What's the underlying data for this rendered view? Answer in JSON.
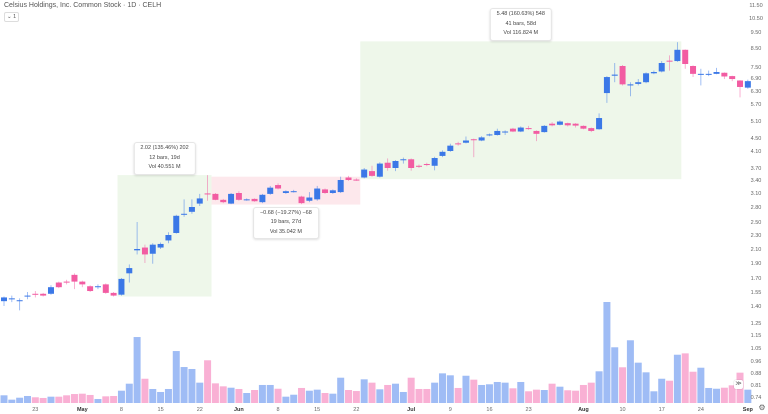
{
  "header": {
    "title": "Celsius Holdings, Inc. Common Stock · 1D · CELH",
    "legend_toggle": "⌄ 1"
  },
  "colors": {
    "up": "#3b78e7",
    "down": "#f25ca2",
    "up_volume": "#9fbcf5",
    "down_volume": "#f9b0d4",
    "gain_zone": "#eef7ea",
    "loss_zone": "#fde8ec"
  },
  "price_axis": {
    "ticks": [
      "11.50",
      "10.50",
      "9.50",
      "8.50",
      "7.50",
      "6.90",
      "6.30",
      "5.70",
      "5.10",
      "4.50",
      "4.10",
      "3.70",
      "3.40",
      "3.10",
      "2.80",
      "2.50",
      "2.30",
      "2.10",
      "1.90",
      "1.70",
      "1.55",
      "1.40",
      "1.25",
      "1.15",
      "1.05",
      "0.96",
      "0.88",
      "0.81",
      "0.74"
    ],
    "scale": "log"
  },
  "date_axis": [
    {
      "label": "23",
      "bar": 4,
      "bold": false
    },
    {
      "label": "May",
      "bar": 10,
      "bold": true
    },
    {
      "label": "8",
      "bar": 15,
      "bold": false
    },
    {
      "label": "15",
      "bar": 20,
      "bold": false
    },
    {
      "label": "22",
      "bar": 25,
      "bold": false
    },
    {
      "label": "Jun",
      "bar": 30,
      "bold": true
    },
    {
      "label": "8",
      "bar": 35,
      "bold": false
    },
    {
      "label": "15",
      "bar": 40,
      "bold": false
    },
    {
      "label": "22",
      "bar": 45,
      "bold": false
    },
    {
      "label": "Jul",
      "bar": 52,
      "bold": true
    },
    {
      "label": "9",
      "bar": 57,
      "bold": false
    },
    {
      "label": "16",
      "bar": 62,
      "bold": false
    },
    {
      "label": "23",
      "bar": 67,
      "bold": false
    },
    {
      "label": "Aug",
      "bar": 74,
      "bold": true
    },
    {
      "label": "10",
      "bar": 79,
      "bold": false
    },
    {
      "label": "17",
      "bar": 84,
      "bold": false
    },
    {
      "label": "24",
      "bar": 89,
      "bold": false
    },
    {
      "label": "Sep",
      "bar": 95,
      "bold": true
    }
  ],
  "measurements": [
    {
      "from_bar": 14.5,
      "to_bar": 26.5,
      "high": 3.52,
      "low": 1.5,
      "type": "gain",
      "label_position": "above",
      "lines": [
        "2.02 (135.46%) 202",
        "12 bars, 19d",
        "Vol 40.551 M"
      ]
    },
    {
      "from_bar": 26.5,
      "to_bar": 45.5,
      "high": 3.48,
      "low": 2.85,
      "type": "loss",
      "label_position": "below",
      "lines": [
        "−0.68 (−19.27%) −68",
        "19 bars, 27d",
        "Vol 35.042 M"
      ]
    },
    {
      "from_bar": 45.5,
      "to_bar": 86.5,
      "high": 8.9,
      "low": 3.42,
      "type": "gain",
      "label_position": "above",
      "lines": [
        "5.48 (160.63%) 548",
        "41 bars, 58d",
        "Vol 116.824 M"
      ]
    }
  ],
  "chart_data": {
    "type": "candlestick",
    "ohlc": [
      [
        1.45,
        1.5,
        1.4,
        1.49
      ],
      [
        1.47,
        1.51,
        1.44,
        1.48
      ],
      [
        1.45,
        1.48,
        1.36,
        1.46
      ],
      [
        1.5,
        1.55,
        1.47,
        1.51
      ],
      [
        1.53,
        1.56,
        1.49,
        1.52
      ],
      [
        1.53,
        1.54,
        1.5,
        1.51
      ],
      [
        1.53,
        1.62,
        1.52,
        1.6
      ],
      [
        1.65,
        1.66,
        1.59,
        1.6
      ],
      [
        1.66,
        1.68,
        1.63,
        1.65
      ],
      [
        1.74,
        1.76,
        1.58,
        1.66
      ],
      [
        1.66,
        1.67,
        1.6,
        1.63
      ],
      [
        1.61,
        1.62,
        1.55,
        1.56
      ],
      [
        1.6,
        1.63,
        1.58,
        1.61
      ],
      [
        1.63,
        1.64,
        1.53,
        1.54
      ],
      [
        1.54,
        1.55,
        1.5,
        1.51
      ],
      [
        1.52,
        1.7,
        1.51,
        1.69
      ],
      [
        1.76,
        1.88,
        1.65,
        1.83
      ],
      [
        2.08,
        2.5,
        2.02,
        2.1
      ],
      [
        2.12,
        2.16,
        1.9,
        2.02
      ],
      [
        2.03,
        2.18,
        1.89,
        2.16
      ],
      [
        2.12,
        2.19,
        2.1,
        2.17
      ],
      [
        2.22,
        2.34,
        2.18,
        2.3
      ],
      [
        2.33,
        2.64,
        2.32,
        2.62
      ],
      [
        2.64,
        2.96,
        2.6,
        2.66
      ],
      [
        2.7,
        2.96,
        2.66,
        2.8
      ],
      [
        2.87,
        3.08,
        2.82,
        2.98
      ],
      [
        3.09,
        3.52,
        2.93,
        3.08
      ],
      [
        3.08,
        3.1,
        2.94,
        2.95
      ],
      [
        2.95,
        2.97,
        2.88,
        2.9
      ],
      [
        2.87,
        3.1,
        2.86,
        3.08
      ],
      [
        3.1,
        3.14,
        2.93,
        2.95
      ],
      [
        2.95,
        2.98,
        2.93,
        2.96
      ],
      [
        2.97,
        2.98,
        2.91,
        2.92
      ],
      [
        2.9,
        3.08,
        2.88,
        3.06
      ],
      [
        3.08,
        3.26,
        3.06,
        3.22
      ],
      [
        3.28,
        3.32,
        3.18,
        3.2
      ],
      [
        3.1,
        3.16,
        3.08,
        3.14
      ],
      [
        3.13,
        3.17,
        3.11,
        3.14
      ],
      [
        3.02,
        3.04,
        2.86,
        2.88
      ],
      [
        2.93,
        3.12,
        2.9,
        3.0
      ],
      [
        2.96,
        3.26,
        2.93,
        3.2
      ],
      [
        3.18,
        3.2,
        3.08,
        3.1
      ],
      [
        3.1,
        3.18,
        3.08,
        3.16
      ],
      [
        3.12,
        3.48,
        3.1,
        3.4
      ],
      [
        3.46,
        3.5,
        3.38,
        3.4
      ],
      [
        3.41,
        3.44,
        3.38,
        3.4
      ],
      [
        3.46,
        3.7,
        3.44,
        3.66
      ],
      [
        3.62,
        3.75,
        3.48,
        3.5
      ],
      [
        3.48,
        3.83,
        3.46,
        3.8
      ],
      [
        3.82,
        3.92,
        3.63,
        3.7
      ],
      [
        3.7,
        3.88,
        3.62,
        3.86
      ],
      [
        3.88,
        3.94,
        3.8,
        3.9
      ],
      [
        3.9,
        3.92,
        3.63,
        3.7
      ],
      [
        3.75,
        3.78,
        3.7,
        3.74
      ],
      [
        3.79,
        3.82,
        3.74,
        3.78
      ],
      [
        3.75,
        3.96,
        3.64,
        3.93
      ],
      [
        3.98,
        4.12,
        3.95,
        4.08
      ],
      [
        4.1,
        4.32,
        4.08,
        4.26
      ],
      [
        4.33,
        4.38,
        4.26,
        4.31
      ],
      [
        4.35,
        4.55,
        4.33,
        4.42
      ],
      [
        4.46,
        4.48,
        3.95,
        4.44
      ],
      [
        4.42,
        4.56,
        4.4,
        4.52
      ],
      [
        4.6,
        4.65,
        4.56,
        4.62
      ],
      [
        4.6,
        4.82,
        4.58,
        4.74
      ],
      [
        4.7,
        4.76,
        4.6,
        4.72
      ],
      [
        4.82,
        4.85,
        4.7,
        4.72
      ],
      [
        4.72,
        4.9,
        4.7,
        4.86
      ],
      [
        4.84,
        4.92,
        4.78,
        4.82
      ],
      [
        4.74,
        4.76,
        4.4,
        4.64
      ],
      [
        4.7,
        4.95,
        4.68,
        4.92
      ],
      [
        5.0,
        5.06,
        4.9,
        4.94
      ],
      [
        4.96,
        5.12,
        4.94,
        5.08
      ],
      [
        5.02,
        5.04,
        4.9,
        4.94
      ],
      [
        5.0,
        5.02,
        4.86,
        4.93
      ],
      [
        4.92,
        4.94,
        4.8,
        4.82
      ],
      [
        4.84,
        4.86,
        4.7,
        4.74
      ],
      [
        4.8,
        5.36,
        4.78,
        5.2
      ],
      [
        6.2,
        7.0,
        5.75,
        6.95
      ],
      [
        7.02,
        7.7,
        6.7,
        7.08
      ],
      [
        7.55,
        7.6,
        6.55,
        6.6
      ],
      [
        6.55,
        6.7,
        6.05,
        6.6
      ],
      [
        6.62,
        6.85,
        6.55,
        6.7
      ],
      [
        6.7,
        7.2,
        6.65,
        7.15
      ],
      [
        7.15,
        7.3,
        7.1,
        7.22
      ],
      [
        7.25,
        7.8,
        7.2,
        7.7
      ],
      [
        7.82,
        8.1,
        7.3,
        7.78
      ],
      [
        7.8,
        8.85,
        7.76,
        8.4
      ],
      [
        8.4,
        8.42,
        7.4,
        7.65
      ],
      [
        7.55,
        7.58,
        6.95,
        7.12
      ],
      [
        7.1,
        7.4,
        6.55,
        7.12
      ],
      [
        7.1,
        7.3,
        7.0,
        7.12
      ],
      [
        7.12,
        7.45,
        7.1,
        7.22
      ],
      [
        7.18,
        7.2,
        6.85,
        6.98
      ],
      [
        7.0,
        7.02,
        6.75,
        6.85
      ],
      [
        6.78,
        6.8,
        6.0,
        6.48
      ],
      [
        6.45,
        6.82,
        6.4,
        6.75
      ]
    ],
    "volume_millions": [
      0.9,
      0.39,
      0.62,
      0.82,
      0.67,
      0.59,
      0.74,
      0.74,
      0.9,
      1.05,
      1.09,
      0.94,
      0.47,
      0.78,
      0.82,
      1.44,
      2.26,
      7.72,
      2.84,
      1.64,
      1.29,
      1.64,
      6.08,
      4.21,
      3.98,
      2.38,
      5.0,
      2.3,
      1.95,
      1.79,
      1.64,
      1.17,
      1.52,
      2.11,
      2.11,
      1.67,
      0.74,
      0.97,
      1.76,
      1.44,
      1.56,
      1.17,
      1.09,
      2.96,
      1.52,
      1.4,
      2.77,
      2.38,
      1.6,
      2.11,
      2.26,
      1.29,
      2.96,
      1.64,
      1.64,
      2.38,
      3.47,
      3.24,
      1.76,
      3.19,
      2.73,
      2.11,
      2.19,
      2.46,
      2.38,
      1.72,
      2.46,
      1.37,
      1.56,
      1.52,
      2.26,
      1.91,
      1.49,
      1.44,
      2.11,
      2.38,
      3.71,
      11.82,
      6.52,
      4.18,
      7.34,
      4.72,
      3.59,
      1.37,
      2.84,
      2.61,
      5.65,
      5.81,
      3.66,
      4.13,
      1.76,
      1.67,
      1.79,
      2.07,
      3.55,
      1.56
    ]
  },
  "footer": {
    "settings_icon": "gear-icon",
    "scroll_icon": "scroll-to-latest-icon",
    "settings_glyph": "⚙",
    "scroll_glyph": "≫"
  }
}
